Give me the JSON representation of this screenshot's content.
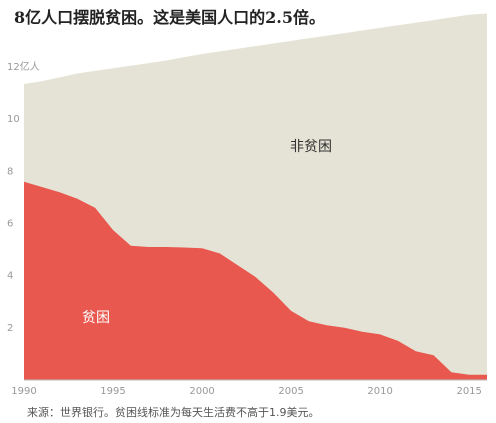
{
  "title": "8亿人口摆脱贫困。这是美国人口的2.5倍。",
  "source": "来源：世界银行。贫困线标准为每天生活费不高于1.9美元。",
  "chart_data": {
    "type": "area",
    "title": "8亿人口摆脱贫困。这是美国人口的2.5倍。",
    "xlabel": "",
    "ylabel": "",
    "xlim": [
      1990,
      2016
    ],
    "ylim": [
      0,
      13.5
    ],
    "x_ticks": [
      "1990",
      "1995",
      "2000",
      "2005",
      "2010",
      "2015"
    ],
    "y_ticks": [
      "2",
      "4",
      "6",
      "8",
      "10",
      "12亿人"
    ],
    "grid": false,
    "legend": "none",
    "x": [
      1990,
      1991,
      1992,
      1993,
      1994,
      1995,
      1996,
      1997,
      1998,
      1999,
      2000,
      2001,
      2002,
      2003,
      2004,
      2005,
      2006,
      2007,
      2008,
      2009,
      2010,
      2011,
      2012,
      2013,
      2014,
      2015,
      2016
    ],
    "series": [
      {
        "name": "贫困",
        "color": "#e8584f",
        "values": [
          7.6,
          7.4,
          7.2,
          6.95,
          6.6,
          5.75,
          5.15,
          5.1,
          5.1,
          5.08,
          5.05,
          4.85,
          4.4,
          3.95,
          3.35,
          2.65,
          2.25,
          2.1,
          2.0,
          1.85,
          1.75,
          1.5,
          1.1,
          0.95,
          0.3,
          0.2,
          0.2
        ]
      },
      {
        "name": "非贫困",
        "color": "#e5e3d5",
        "values": [
          3.75,
          4.05,
          4.4,
          4.8,
          5.25,
          6.2,
          6.9,
          7.05,
          7.15,
          7.3,
          7.45,
          7.75,
          8.3,
          8.85,
          9.55,
          10.35,
          10.85,
          11.1,
          11.3,
          11.55,
          11.75,
          12.1,
          12.6,
          12.85,
          13.6,
          13.8,
          13.85
        ]
      }
    ],
    "totals": [
      11.35,
      11.45,
      11.6,
      11.75,
      11.85,
      11.95,
      12.05,
      12.15,
      12.25,
      12.38,
      12.5,
      12.6,
      12.7,
      12.8,
      12.9,
      13.0,
      13.1,
      13.2,
      13.3,
      13.4,
      13.5,
      13.6,
      13.7,
      13.8,
      13.9,
      14.0,
      14.05
    ],
    "series_labels": [
      "贫困",
      "非贫困"
    ]
  }
}
